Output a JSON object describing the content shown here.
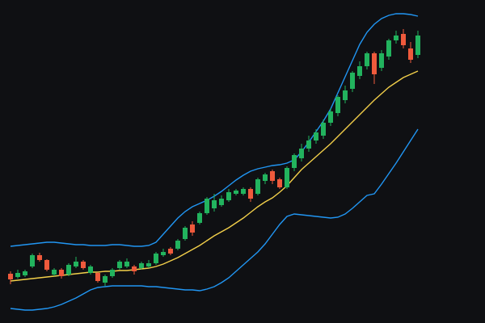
{
  "chart_data": {
    "type": "candlestick",
    "ylim": [
      0,
      400
    ],
    "up_color": "#22b35e",
    "down_color": "#ef5a3c",
    "open": [
      61,
      57,
      59,
      70,
      84,
      78,
      60,
      66,
      60,
      70,
      76,
      62,
      62,
      50,
      58,
      68,
      70,
      70,
      68,
      70,
      74,
      84,
      92,
      92,
      104,
      122,
      124,
      136,
      142,
      146,
      152,
      160,
      160,
      166,
      160,
      176,
      188,
      178,
      168,
      192,
      204,
      216,
      226,
      232,
      248,
      260,
      276,
      290,
      306,
      318,
      334,
      316,
      330,
      350,
      358,
      340,
      332
    ],
    "high": [
      64,
      66,
      66,
      86,
      87,
      79,
      68,
      68,
      74,
      82,
      78,
      72,
      63,
      60,
      68,
      78,
      80,
      72,
      76,
      78,
      88,
      92,
      94,
      104,
      120,
      126,
      138,
      156,
      160,
      158,
      166,
      166,
      168,
      168,
      180,
      186,
      190,
      180,
      194,
      210,
      222,
      232,
      240,
      252,
      266,
      282,
      294,
      312,
      324,
      336,
      336,
      338,
      352,
      362,
      364,
      348,
      362
    ],
    "low": [
      48,
      55,
      57,
      68,
      76,
      64,
      58,
      55,
      58,
      68,
      66,
      60,
      50,
      46,
      56,
      66,
      68,
      60,
      66,
      68,
      72,
      82,
      84,
      90,
      102,
      108,
      122,
      134,
      138,
      144,
      150,
      158,
      158,
      150,
      158,
      172,
      172,
      166,
      166,
      188,
      200,
      212,
      222,
      228,
      244,
      256,
      272,
      286,
      302,
      314,
      296,
      312,
      326,
      346,
      340,
      322,
      328
    ],
    "close": [
      54,
      62,
      64,
      84,
      78,
      66,
      66,
      58,
      72,
      76,
      68,
      70,
      52,
      58,
      66,
      76,
      76,
      64,
      74,
      74,
      86,
      88,
      86,
      102,
      118,
      112,
      136,
      154,
      152,
      154,
      162,
      164,
      166,
      154,
      178,
      184,
      176,
      168,
      192,
      208,
      216,
      226,
      236,
      248,
      262,
      280,
      288,
      310,
      318,
      334,
      308,
      334,
      350,
      356,
      344,
      326,
      356
    ],
    "series": [
      {
        "color": "#f2cf4a",
        "values": [
          52,
          53,
          54,
          55,
          56,
          57,
          58,
          59,
          60,
          61,
          62,
          63,
          63,
          64,
          64,
          65,
          65,
          66,
          67,
          68,
          70,
          73,
          77,
          81,
          86,
          91,
          96,
          102,
          108,
          113,
          118,
          124,
          130,
          137,
          144,
          150,
          155,
          162,
          170,
          180,
          190,
          198,
          206,
          214,
          222,
          231,
          240,
          249,
          258,
          267,
          276,
          284,
          292,
          298,
          304,
          308,
          312
        ]
      },
      {
        "color": "#2196f3",
        "values": [
          95,
          96,
          97,
          98,
          99,
          100,
          100,
          99,
          98,
          97,
          97,
          96,
          96,
          96,
          97,
          97,
          96,
          95,
          95,
          96,
          100,
          110,
          120,
          130,
          138,
          144,
          148,
          152,
          157,
          163,
          170,
          177,
          183,
          188,
          191,
          193,
          195,
          196,
          198,
          202,
          212,
          224,
          237,
          250,
          265,
          285,
          305,
          325,
          345,
          360,
          370,
          377,
          381,
          383,
          383,
          382,
          380
        ]
      },
      {
        "color": "#2196f3",
        "values": [
          18,
          17,
          16,
          16,
          17,
          18,
          20,
          23,
          27,
          31,
          36,
          41,
          44,
          45,
          46,
          46,
          46,
          46,
          46,
          45,
          45,
          44,
          43,
          42,
          41,
          41,
          40,
          42,
          45,
          50,
          56,
          64,
          72,
          80,
          88,
          98,
          110,
          122,
          132,
          135,
          134,
          133,
          132,
          131,
          130,
          131,
          135,
          142,
          150,
          158,
          160,
          172,
          185,
          198,
          212,
          226,
          240
        ]
      }
    ]
  }
}
